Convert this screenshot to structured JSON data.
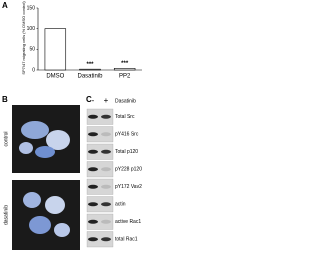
{
  "chart_data": {
    "type": "bar",
    "panel_label": "A",
    "ylabel": "SP7/47 migrating cells (% DMSO control)",
    "categories": [
      "DMSO",
      "Dasatinib",
      "PP2"
    ],
    "values": [
      100,
      2,
      4
    ],
    "color": "#ffffff",
    "annotations": [
      "***",
      "***"
    ],
    "ylim": [
      0,
      150
    ],
    "yticks": [
      0,
      50,
      100,
      150
    ],
    "grid": false
  },
  "panel_b": {
    "label": "B",
    "rows": [
      "control",
      "dasatinib"
    ]
  },
  "panel_c": {
    "label": "C",
    "lanes": [
      "-",
      "+"
    ],
    "treatment": "Dasatinib",
    "blots": [
      "Total Src",
      "pY416 Src",
      "Total p120",
      "pY228 p120",
      "pY172 Vav2",
      "actin",
      "active Rac1",
      "total Rac1"
    ]
  }
}
